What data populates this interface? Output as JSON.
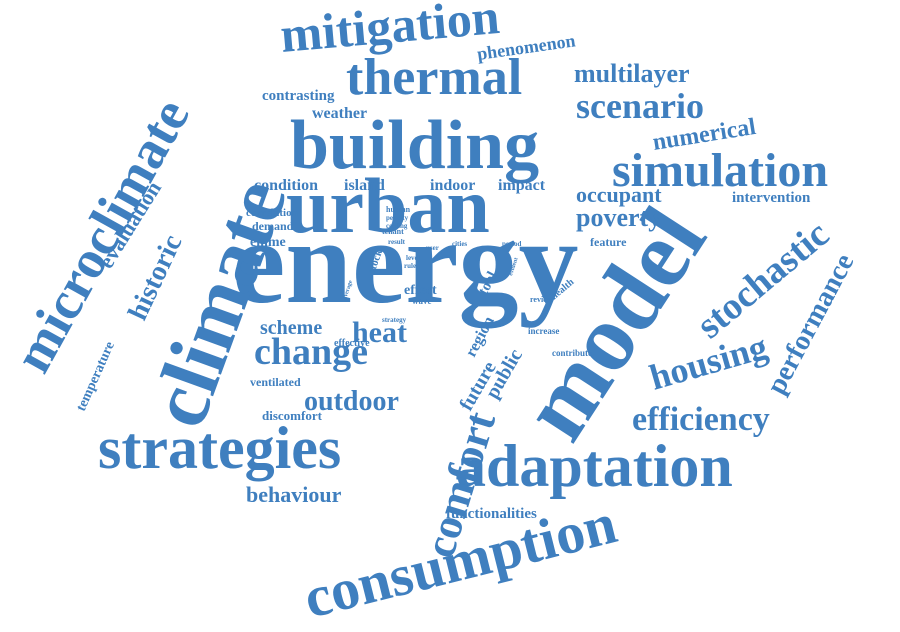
{
  "cloud": {
    "color": "#3f7fbf",
    "words": [
      "energy",
      "urban",
      "building",
      "model",
      "climate",
      "microclimate",
      "thermal",
      "mitigation",
      "strategies",
      "adaptation",
      "consumption",
      "comfort",
      "simulation",
      "scenario",
      "multilayer",
      "phenomenon",
      "numerical",
      "intervention",
      "stochastic",
      "performance",
      "housing",
      "efficiency",
      "poverty",
      "occupant",
      "feature",
      "change",
      "heat",
      "scheme",
      "outdoor",
      "ventilated",
      "discomfort",
      "behaviour",
      "functionalities",
      "historic",
      "evaluation",
      "temperature",
      "contrasting",
      "weather",
      "condition",
      "island",
      "indoor",
      "impact",
      "correlation",
      "demand",
      "emme",
      "future",
      "public",
      "region",
      "tool",
      "stock",
      "effect",
      "wave",
      "effective",
      "strategy",
      "increase",
      "contribute",
      "review",
      "health",
      "human",
      "penalty",
      "cooling",
      "tenant",
      "result",
      "cities",
      "user",
      "level",
      "rule",
      "average",
      "period",
      "evident"
    ]
  }
}
